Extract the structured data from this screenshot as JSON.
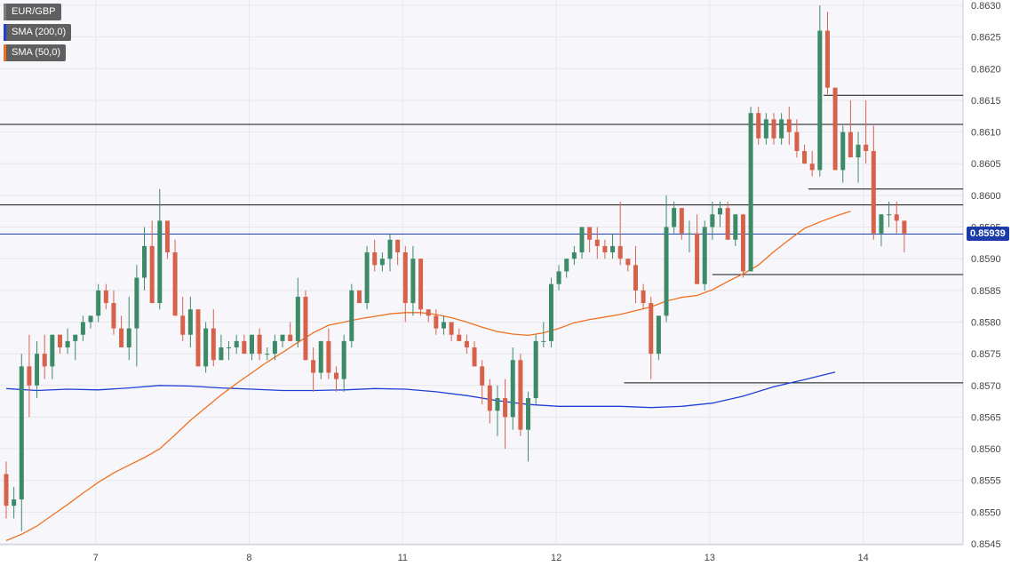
{
  "legend": [
    {
      "label": "EUR/GBP",
      "color": "#7d7d7d"
    },
    {
      "label": "SMA (200,0)",
      "color": "#1f3fd6"
    },
    {
      "label": "SMA (50,0)",
      "color": "#f07020"
    }
  ],
  "price_tag": {
    "label": "0.85939",
    "value": 0.85939,
    "color": "#1b3ca8"
  },
  "chart_data": {
    "type": "candlestick",
    "symbol": "EUR/GBP",
    "ylim": [
      0.8545,
      0.863
    ],
    "y_ticks": [
      "0.8545",
      "0.8550",
      "0.8555",
      "0.8560",
      "0.8565",
      "0.8570",
      "0.8575",
      "0.8580",
      "0.8585",
      "0.8590",
      "0.8595",
      "0.8600",
      "0.8605",
      "0.8610",
      "0.8615",
      "0.8620",
      "0.8625",
      "0.8630"
    ],
    "x_ticks": [
      {
        "label": "7",
        "index": 12
      },
      {
        "label": "8",
        "index": 32
      },
      {
        "label": "11",
        "index": 52
      },
      {
        "label": "12",
        "index": 72
      },
      {
        "label": "13",
        "index": 92
      },
      {
        "label": "14",
        "index": 112
      }
    ],
    "up_color": "#3c8a67",
    "down_color": "#d7624b",
    "candles": [
      [
        0.8556,
        0.8558,
        0.8549,
        0.8551
      ],
      [
        0.8551,
        0.8554,
        0.8549,
        0.8552
      ],
      [
        0.8552,
        0.8575,
        0.8547,
        0.8573
      ],
      [
        0.8573,
        0.8578,
        0.8565,
        0.857
      ],
      [
        0.857,
        0.8577,
        0.8568,
        0.8575
      ],
      [
        0.8575,
        0.8578,
        0.8571,
        0.8573
      ],
      [
        0.8573,
        0.8578,
        0.8571,
        0.8578
      ],
      [
        0.8578,
        0.8578,
        0.8575,
        0.8576
      ],
      [
        0.8576,
        0.8579,
        0.8575,
        0.8577
      ],
      [
        0.8577,
        0.8578,
        0.8574,
        0.8578
      ],
      [
        0.8578,
        0.8581,
        0.8577,
        0.858
      ],
      [
        0.858,
        0.8581,
        0.8579,
        0.8581
      ],
      [
        0.8581,
        0.8586,
        0.858,
        0.8585
      ],
      [
        0.8585,
        0.8586,
        0.8582,
        0.8583
      ],
      [
        0.8583,
        0.8585,
        0.8578,
        0.8579
      ],
      [
        0.8579,
        0.8581,
        0.8576,
        0.8576
      ],
      [
        0.8576,
        0.8584,
        0.8574,
        0.8579
      ],
      [
        0.8579,
        0.8589,
        0.8573,
        0.8587
      ],
      [
        0.8587,
        0.8595,
        0.8585,
        0.8592
      ],
      [
        0.8592,
        0.8596,
        0.8583,
        0.8583
      ],
      [
        0.8583,
        0.8601,
        0.8582,
        0.8596
      ],
      [
        0.8596,
        0.8596,
        0.859,
        0.8591
      ],
      [
        0.8591,
        0.8593,
        0.8581,
        0.8581
      ],
      [
        0.8581,
        0.8584,
        0.8577,
        0.8578
      ],
      [
        0.8578,
        0.8584,
        0.8576,
        0.8582
      ],
      [
        0.8582,
        0.8582,
        0.8573,
        0.8573
      ],
      [
        0.8573,
        0.858,
        0.8572,
        0.8579
      ],
      [
        0.8579,
        0.8582,
        0.8573,
        0.8574
      ],
      [
        0.8574,
        0.8578,
        0.8574,
        0.8576
      ],
      [
        0.8576,
        0.8577,
        0.8574,
        0.8576
      ],
      [
        0.8576,
        0.8578,
        0.8575,
        0.8577
      ],
      [
        0.8577,
        0.8578,
        0.8575,
        0.8575
      ],
      [
        0.8575,
        0.8578,
        0.8574,
        0.8578
      ],
      [
        0.8578,
        0.8579,
        0.8574,
        0.8575
      ],
      [
        0.8575,
        0.8576,
        0.8574,
        0.8575
      ],
      [
        0.8575,
        0.8578,
        0.8574,
        0.8577
      ],
      [
        0.8577,
        0.8578,
        0.8576,
        0.8578
      ],
      [
        0.8578,
        0.858,
        0.8577,
        0.8577
      ],
      [
        0.8577,
        0.8587,
        0.8576,
        0.8584
      ],
      [
        0.8584,
        0.8585,
        0.8574,
        0.8574
      ],
      [
        0.8574,
        0.8576,
        0.8569,
        0.8572
      ],
      [
        0.8572,
        0.8577,
        0.8571,
        0.8577
      ],
      [
        0.8577,
        0.8579,
        0.8571,
        0.8572
      ],
      [
        0.8572,
        0.8573,
        0.8569,
        0.8571
      ],
      [
        0.8571,
        0.8578,
        0.8569,
        0.8577
      ],
      [
        0.8577,
        0.8586,
        0.8576,
        0.8585
      ],
      [
        0.8585,
        0.8585,
        0.8583,
        0.8583
      ],
      [
        0.8583,
        0.8592,
        0.8582,
        0.8591
      ],
      [
        0.8591,
        0.8593,
        0.8588,
        0.8589
      ],
      [
        0.8589,
        0.8591,
        0.8588,
        0.859
      ],
      [
        0.859,
        0.8594,
        0.8588,
        0.8593
      ],
      [
        0.8593,
        0.8593,
        0.8589,
        0.8591
      ],
      [
        0.8591,
        0.8592,
        0.858,
        0.8583
      ],
      [
        0.8583,
        0.8592,
        0.8581,
        0.859
      ],
      [
        0.859,
        0.859,
        0.8581,
        0.8582
      ],
      [
        0.8582,
        0.8582,
        0.858,
        0.8581
      ],
      [
        0.8581,
        0.8582,
        0.8578,
        0.8579
      ],
      [
        0.8579,
        0.8581,
        0.8578,
        0.858
      ],
      [
        0.858,
        0.858,
        0.8577,
        0.8578
      ],
      [
        0.8578,
        0.8579,
        0.8577,
        0.8577
      ],
      [
        0.8577,
        0.8578,
        0.8575,
        0.8576
      ],
      [
        0.8576,
        0.8577,
        0.8573,
        0.8573
      ],
      [
        0.8573,
        0.8574,
        0.8567,
        0.857
      ],
      [
        0.857,
        0.8571,
        0.8564,
        0.8566
      ],
      [
        0.8566,
        0.857,
        0.8562,
        0.8568
      ],
      [
        0.8568,
        0.8571,
        0.856,
        0.8565
      ],
      [
        0.8565,
        0.8576,
        0.8563,
        0.8574
      ],
      [
        0.8574,
        0.8575,
        0.8562,
        0.8563
      ],
      [
        0.8563,
        0.8569,
        0.8558,
        0.8568
      ],
      [
        0.8568,
        0.8578,
        0.8567,
        0.8577
      ],
      [
        0.8577,
        0.858,
        0.8576,
        0.8577
      ],
      [
        0.8577,
        0.8587,
        0.8576,
        0.8586
      ],
      [
        0.8586,
        0.8589,
        0.8585,
        0.8588
      ],
      [
        0.8588,
        0.859,
        0.8587,
        0.859
      ],
      [
        0.859,
        0.8592,
        0.8589,
        0.8591
      ],
      [
        0.8591,
        0.8595,
        0.859,
        0.8595
      ],
      [
        0.8595,
        0.8595,
        0.8591,
        0.8593
      ],
      [
        0.8593,
        0.8595,
        0.859,
        0.8592
      ],
      [
        0.8592,
        0.8593,
        0.859,
        0.8591
      ],
      [
        0.8591,
        0.8594,
        0.859,
        0.8592
      ],
      [
        0.8592,
        0.8599,
        0.8589,
        0.859
      ],
      [
        0.859,
        0.859,
        0.8588,
        0.8589
      ],
      [
        0.8589,
        0.8592,
        0.8583,
        0.8585
      ],
      [
        0.8585,
        0.8586,
        0.8582,
        0.8583
      ],
      [
        0.8583,
        0.8584,
        0.8571,
        0.8575
      ],
      [
        0.8575,
        0.8581,
        0.8574,
        0.8581
      ],
      [
        0.8581,
        0.86,
        0.858,
        0.8595
      ],
      [
        0.8595,
        0.8599,
        0.8594,
        0.8598
      ],
      [
        0.8598,
        0.8598,
        0.8593,
        0.8594
      ],
      [
        0.8594,
        0.8596,
        0.8591,
        0.8594
      ],
      [
        0.8594,
        0.8597,
        0.8586,
        0.8586
      ],
      [
        0.8586,
        0.8596,
        0.8585,
        0.8595
      ],
      [
        0.8595,
        0.8599,
        0.8593,
        0.8597
      ],
      [
        0.8597,
        0.8599,
        0.8595,
        0.8598
      ],
      [
        0.8598,
        0.8599,
        0.8593,
        0.8593
      ],
      [
        0.8593,
        0.8597,
        0.8592,
        0.8597
      ],
      [
        0.8597,
        0.8597,
        0.8587,
        0.8588
      ],
      [
        0.8588,
        0.8614,
        0.8588,
        0.8613
      ],
      [
        0.8613,
        0.8614,
        0.8608,
        0.8609
      ],
      [
        0.8609,
        0.8613,
        0.8608,
        0.8612
      ],
      [
        0.8612,
        0.8613,
        0.8608,
        0.8609
      ],
      [
        0.8609,
        0.8613,
        0.8608,
        0.8612
      ],
      [
        0.8612,
        0.8614,
        0.8608,
        0.861
      ],
      [
        0.861,
        0.8612,
        0.8606,
        0.8607
      ],
      [
        0.8607,
        0.8608,
        0.8605,
        0.8605
      ],
      [
        0.8605,
        0.8607,
        0.8603,
        0.8604
      ],
      [
        0.8604,
        0.863,
        0.8603,
        0.8626
      ],
      [
        0.8626,
        0.8629,
        0.8616,
        0.8617
      ],
      [
        0.8617,
        0.8617,
        0.8604,
        0.8604
      ],
      [
        0.8604,
        0.8611,
        0.8602,
        0.861
      ],
      [
        0.861,
        0.8615,
        0.8606,
        0.8606
      ],
      [
        0.8606,
        0.861,
        0.8602,
        0.8608
      ],
      [
        0.8608,
        0.8615,
        0.8605,
        0.8607
      ],
      [
        0.8607,
        0.8611,
        0.8593,
        0.8594
      ],
      [
        0.8594,
        0.8597,
        0.8592,
        0.8597
      ],
      [
        0.8597,
        0.8599,
        0.8595,
        0.8597
      ],
      [
        0.8597,
        0.8599,
        0.8594,
        0.8596
      ],
      [
        0.8596,
        0.8596,
        0.8591,
        0.8594
      ]
    ],
    "sma_200": {
      "name": "SMA (200,0)",
      "color": "#1f3fd6",
      "points": [
        [
          0,
          0.85695
        ],
        [
          4,
          0.85692
        ],
        [
          8,
          0.85694
        ],
        [
          12,
          0.85693
        ],
        [
          16,
          0.85696
        ],
        [
          20,
          0.857
        ],
        [
          24,
          0.85699
        ],
        [
          28,
          0.85696
        ],
        [
          32,
          0.85694
        ],
        [
          36,
          0.85692
        ],
        [
          40,
          0.85692
        ],
        [
          44,
          0.85693
        ],
        [
          48,
          0.85695
        ],
        [
          52,
          0.85694
        ],
        [
          56,
          0.8569
        ],
        [
          60,
          0.85684
        ],
        [
          64,
          0.85676
        ],
        [
          68,
          0.8567
        ],
        [
          72,
          0.85667
        ],
        [
          76,
          0.85667
        ],
        [
          80,
          0.85667
        ],
        [
          84,
          0.85665
        ],
        [
          88,
          0.85667
        ],
        [
          92,
          0.85672
        ],
        [
          96,
          0.85683
        ],
        [
          100,
          0.85698
        ],
        [
          104,
          0.85709
        ],
        [
          108,
          0.85721
        ]
      ]
    },
    "sma_50": {
      "name": "SMA (50,0)",
      "color": "#f07020",
      "points": [
        [
          0,
          0.85455
        ],
        [
          2,
          0.85465
        ],
        [
          4,
          0.85478
        ],
        [
          6,
          0.85495
        ],
        [
          8,
          0.85512
        ],
        [
          10,
          0.8553
        ],
        [
          12,
          0.85547
        ],
        [
          14,
          0.85562
        ],
        [
          16,
          0.85574
        ],
        [
          18,
          0.85586
        ],
        [
          20,
          0.856
        ],
        [
          22,
          0.85622
        ],
        [
          24,
          0.85645
        ],
        [
          26,
          0.85665
        ],
        [
          28,
          0.85685
        ],
        [
          30,
          0.85703
        ],
        [
          32,
          0.8572
        ],
        [
          34,
          0.85737
        ],
        [
          36,
          0.85752
        ],
        [
          38,
          0.85768
        ],
        [
          40,
          0.85783
        ],
        [
          42,
          0.85795
        ],
        [
          44,
          0.858
        ],
        [
          46,
          0.85805
        ],
        [
          48,
          0.85809
        ],
        [
          50,
          0.85813
        ],
        [
          52,
          0.85815
        ],
        [
          54,
          0.85815
        ],
        [
          56,
          0.85812
        ],
        [
          58,
          0.85807
        ],
        [
          60,
          0.858
        ],
        [
          62,
          0.85792
        ],
        [
          64,
          0.85785
        ],
        [
          66,
          0.85781
        ],
        [
          68,
          0.85779
        ],
        [
          70,
          0.85783
        ],
        [
          72,
          0.8579
        ],
        [
          74,
          0.85799
        ],
        [
          76,
          0.85804
        ],
        [
          78,
          0.85808
        ],
        [
          80,
          0.85812
        ],
        [
          82,
          0.85818
        ],
        [
          84,
          0.85824
        ],
        [
          86,
          0.85833
        ],
        [
          88,
          0.85839
        ],
        [
          90,
          0.85842
        ],
        [
          92,
          0.85851
        ],
        [
          94,
          0.85864
        ],
        [
          96,
          0.85876
        ],
        [
          98,
          0.8589
        ],
        [
          100,
          0.85911
        ],
        [
          102,
          0.8593
        ],
        [
          104,
          0.85948
        ],
        [
          106,
          0.85958
        ],
        [
          108,
          0.85967
        ],
        [
          110,
          0.85975
        ]
      ]
    },
    "levels": [
      {
        "price": 0.86158,
        "from_index": 106.5
      },
      {
        "price": 0.86112
      },
      {
        "price": 0.8601,
        "from_index": 104.5
      },
      {
        "price": 0.85985
      },
      {
        "price": 0.85875,
        "from_index": 92
      },
      {
        "price": 0.85704,
        "from_index": 80.5
      }
    ],
    "current_price": 0.85939
  }
}
